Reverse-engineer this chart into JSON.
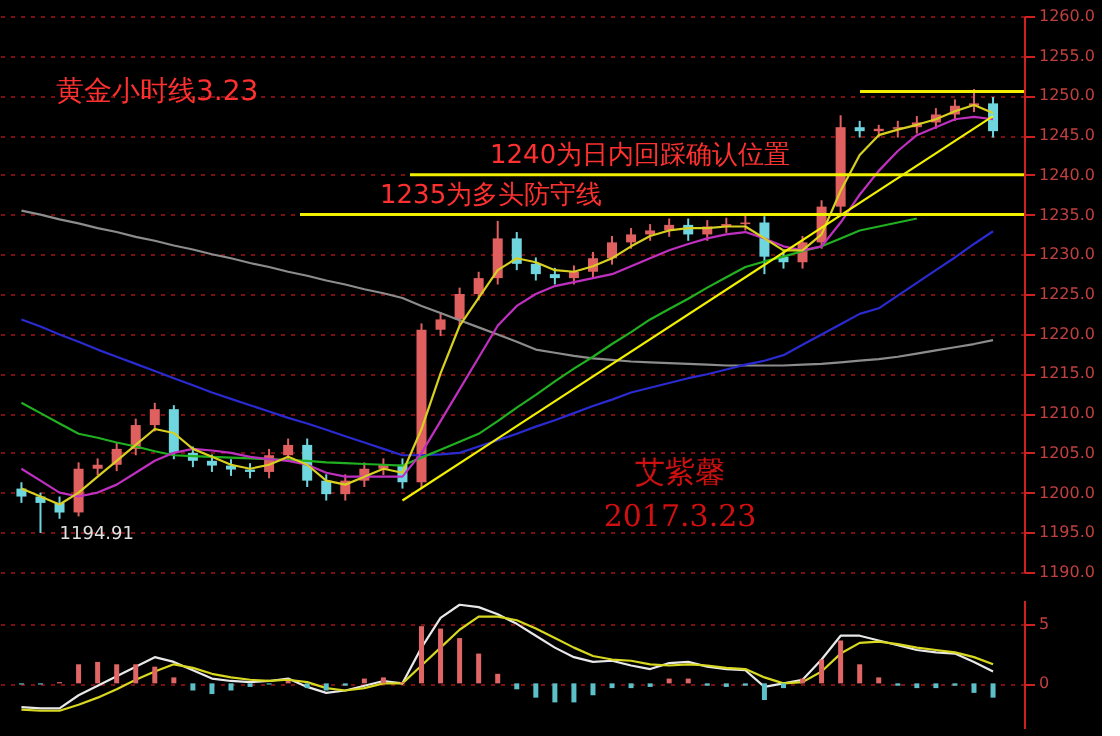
{
  "chart_data": [
    {
      "type": "candlestick",
      "title": "黄金小时线3.23",
      "categories": [
        null,
        null,
        null,
        null,
        null,
        null,
        null,
        null,
        null,
        null,
        null,
        null,
        null,
        null,
        null,
        null,
        null,
        null,
        null,
        null,
        null,
        null,
        null,
        null,
        null,
        null,
        null,
        null,
        null,
        null,
        null,
        null,
        null,
        null,
        null,
        null,
        null,
        null,
        null,
        null,
        null,
        null,
        null,
        null,
        null,
        null,
        null,
        null,
        null,
        null,
        null,
        null
      ],
      "ohlc": [
        [
          1200.5,
          1201.3,
          1198.7,
          1199.5
        ],
        [
          1199.5,
          1200.0,
          1194.91,
          1198.7
        ],
        [
          1198.7,
          1199.5,
          1196.7,
          1197.5
        ],
        [
          1197.5,
          1203.8,
          1197.0,
          1203.0
        ],
        [
          1203.0,
          1204.3,
          1202.2,
          1203.5
        ],
        [
          1203.5,
          1206.3,
          1202.7,
          1205.5
        ],
        [
          1205.5,
          1209.3,
          1204.7,
          1208.5
        ],
        [
          1208.5,
          1211.3,
          1207.7,
          1210.5
        ],
        [
          1210.5,
          1211.0,
          1204.2,
          1205.0
        ],
        [
          1205.0,
          1205.8,
          1203.2,
          1204.0
        ],
        [
          1204.0,
          1204.8,
          1202.6,
          1203.4
        ],
        [
          1203.4,
          1204.2,
          1202.1,
          1202.9
        ],
        [
          1202.9,
          1203.7,
          1201.8,
          1202.6
        ],
        [
          1202.6,
          1205.5,
          1201.8,
          1204.7
        ],
        [
          1204.7,
          1206.8,
          1203.9,
          1206.0
        ],
        [
          1206.0,
          1206.8,
          1200.7,
          1201.5
        ],
        [
          1201.5,
          1202.3,
          1199.0,
          1199.8
        ],
        [
          1199.8,
          1202.3,
          1199.0,
          1201.5
        ],
        [
          1201.5,
          1203.8,
          1200.7,
          1203.0
        ],
        [
          1203.0,
          1204.3,
          1202.2,
          1203.5
        ],
        [
          1203.5,
          1204.3,
          1200.5,
          1201.3
        ],
        [
          1201.3,
          1221.3,
          1200.5,
          1220.5
        ],
        [
          1220.5,
          1222.6,
          1219.7,
          1221.8
        ],
        [
          1221.8,
          1225.8,
          1221.0,
          1225.0
        ],
        [
          1225.0,
          1227.8,
          1224.2,
          1227.0
        ],
        [
          1227.0,
          1234.2,
          1226.2,
          1232.0
        ],
        [
          1232.0,
          1232.8,
          1228.0,
          1228.8
        ],
        [
          1228.8,
          1229.6,
          1226.7,
          1227.5
        ],
        [
          1227.5,
          1228.3,
          1226.2,
          1227.0
        ],
        [
          1227.0,
          1228.6,
          1226.2,
          1227.8
        ],
        [
          1227.8,
          1230.3,
          1227.0,
          1229.5
        ],
        [
          1229.5,
          1232.3,
          1228.7,
          1231.5
        ],
        [
          1231.5,
          1233.3,
          1230.7,
          1232.5
        ],
        [
          1232.5,
          1233.8,
          1231.7,
          1233.0
        ],
        [
          1233.0,
          1234.5,
          1232.2,
          1233.7
        ],
        [
          1233.7,
          1234.5,
          1231.7,
          1232.5
        ],
        [
          1232.5,
          1234.3,
          1231.7,
          1233.5
        ],
        [
          1233.5,
          1234.6,
          1232.7,
          1233.8
        ],
        [
          1233.8,
          1235.0,
          1233.0,
          1234.0
        ],
        [
          1234.0,
          1234.8,
          1227.5,
          1229.7
        ],
        [
          1229.7,
          1230.5,
          1228.2,
          1229.0
        ],
        [
          1229.0,
          1232.3,
          1228.2,
          1231.5
        ],
        [
          1231.5,
          1236.8,
          1230.7,
          1236.0
        ],
        [
          1236.0,
          1247.5,
          1235.2,
          1246.0
        ],
        [
          1246.0,
          1246.8,
          1244.7,
          1245.5
        ],
        [
          1245.5,
          1246.3,
          1244.7,
          1245.8
        ],
        [
          1245.8,
          1246.8,
          1244.7,
          1246.0
        ],
        [
          1246.0,
          1247.4,
          1245.2,
          1246.6
        ],
        [
          1246.6,
          1248.4,
          1245.8,
          1247.6
        ],
        [
          1247.6,
          1249.5,
          1246.8,
          1248.7
        ],
        [
          1248.7,
          1250.8,
          1247.9,
          1249.0
        ],
        [
          1249.0,
          1249.8,
          1244.7,
          1245.5
        ]
      ],
      "colors": [
        "#6fd6e0",
        "#6fd6e0",
        "#6fd6e0",
        "#e06060",
        "#e06060",
        "#e06060",
        "#e06060",
        "#e06060",
        "#6fd6e0",
        "#6fd6e0",
        "#6fd6e0",
        "#6fd6e0",
        "#6fd6e0",
        "#e06060",
        "#e06060",
        "#6fd6e0",
        "#6fd6e0",
        "#e06060",
        "#e06060",
        "#e06060",
        "#6fd6e0",
        "#e06060",
        "#e06060",
        "#e06060",
        "#e06060",
        "#e06060",
        "#6fd6e0",
        "#6fd6e0",
        "#6fd6e0",
        "#e06060",
        "#e06060",
        "#e06060",
        "#e06060",
        "#e06060",
        "#e06060",
        "#6fd6e0",
        "#e06060",
        "#e06060",
        "#e06060",
        "#6fd6e0",
        "#6fd6e0",
        "#e06060",
        "#e06060",
        "#e06060",
        "#6fd6e0",
        "#e06060",
        "#e06060",
        "#e06060",
        "#e06060",
        "#e06060",
        "#e06060",
        "#6fd6e0"
      ],
      "series": [
        {
          "type": "line",
          "color": "#8c8c8c",
          "values": [
            1235.5,
            1235,
            1234.4,
            1233.9,
            1233.3,
            1232.8,
            1232.2,
            1231.7,
            1231.1,
            1230.6,
            1230,
            1229.5,
            1228.9,
            1228.4,
            1227.8,
            1227.3,
            1226.7,
            1226.2,
            1225.6,
            1225.1,
            1224.5,
            1223.5,
            1222.6,
            1221.7,
            1220.8,
            1219.9,
            1219,
            1218,
            1217.6,
            1217.2,
            1216.9,
            1216.7,
            1216.5,
            1216.4,
            1216.3,
            1216.2,
            1216.1,
            1216,
            1216,
            1216,
            1216,
            1216.1,
            1216.2,
            1216.4,
            1216.6,
            1216.8,
            1217.1,
            1217.5,
            1217.9,
            1218.3,
            1218.7,
            1219.2
          ]
        },
        {
          "type": "line",
          "color": "#2a2ad0",
          "values": [
            1221.8,
            1220.9,
            1219.9,
            1219,
            1218,
            1217.1,
            1216.2,
            1215.3,
            1214.4,
            1213.5,
            1212.6,
            1211.8,
            1211,
            1210.2,
            1209.4,
            1208.7,
            1207.9,
            1207.1,
            1206.3,
            1205.5,
            1204.7,
            1204.7,
            1204.8,
            1205,
            1205.8,
            1206.6,
            1207.4,
            1208.3,
            1209.1,
            1210,
            1210.9,
            1211.7,
            1212.6,
            1213.2,
            1213.8,
            1214.4,
            1214.9,
            1215.5,
            1216.1,
            1216.6,
            1217.3,
            1218.6,
            1219.9,
            1221.2,
            1222.5,
            1223.2,
            1224.8,
            1226.4,
            1228,
            1229.6,
            1231.3,
            1232.9
          ]
        },
        {
          "type": "line",
          "color": "#20b020",
          "values": [
            1211.3,
            1210,
            1208.7,
            1207.4,
            1206.9,
            1206.3,
            1205.8,
            1205.2,
            1204.7,
            1204.6,
            1204.5,
            1204.4,
            1204.3,
            1204.2,
            1204.1,
            1204,
            1203.8,
            1203.7,
            1203.6,
            1203.5,
            1203.4,
            1204.4,
            1205.4,
            1206.4,
            1207.4,
            1209,
            1210.7,
            1212.3,
            1214,
            1215.6,
            1217.1,
            1218.7,
            1220.2,
            1221.8,
            1223.1,
            1224.4,
            1225.8,
            1227.1,
            1228.4,
            1229.1,
            1229.7,
            1230.4,
            1231,
            1232,
            1233,
            1233.5,
            1234,
            1234.5,
            null,
            null,
            null,
            null
          ]
        },
        {
          "type": "line",
          "color": "#c030c0",
          "values": [
            1203,
            1201.5,
            1200,
            1199.5,
            1200,
            1201,
            1202.5,
            1204,
            1205,
            1205.5,
            1205.3,
            1205,
            1204.5,
            1204.2,
            1204,
            1203.5,
            1202.5,
            1202,
            1202,
            1202,
            1202,
            1205,
            1209,
            1213,
            1217,
            1221,
            1223.5,
            1225,
            1226,
            1226.5,
            1227,
            1227.5,
            1228.5,
            1229.5,
            1230.5,
            1231.3,
            1232,
            1232.5,
            1232.8,
            1232,
            1231,
            1230.5,
            1231,
            1234,
            1237.5,
            1240.5,
            1243,
            1245,
            1246,
            1247,
            1247.3,
            1247
          ]
        },
        {
          "type": "line",
          "color": "#d8d020",
          "values": [
            1200.5,
            1199.5,
            1198.5,
            1200,
            1202,
            1204,
            1206,
            1208,
            1207.5,
            1205.5,
            1204.5,
            1203.5,
            1203,
            1203.5,
            1204.5,
            1203.5,
            1201.5,
            1201,
            1202,
            1203,
            1202.5,
            1208,
            1215,
            1221,
            1224.5,
            1228,
            1229.5,
            1229,
            1228,
            1227.8,
            1228.5,
            1229.5,
            1231,
            1232.3,
            1233,
            1233.3,
            1233.3,
            1233.5,
            1233.5,
            1232,
            1230.5,
            1230.5,
            1232.5,
            1238,
            1242.5,
            1245,
            1245.7,
            1246.3,
            1247,
            1248,
            1248.8,
            1247.8
          ]
        },
        {
          "type": "line",
          "color": "#f0f000",
          "values": [
            null,
            null,
            null,
            null,
            null,
            null,
            null,
            null,
            null,
            null,
            null,
            null,
            null,
            null,
            null,
            null,
            null,
            null,
            null,
            null,
            1199.0,
            null,
            null,
            null,
            null,
            null,
            null,
            null,
            null,
            null,
            null,
            null,
            null,
            null,
            null,
            null,
            null,
            null,
            null,
            null,
            null,
            null,
            null,
            null,
            null,
            null,
            null,
            null,
            null,
            null,
            null,
            1247.4
          ]
        }
      ],
      "ref_lines": [
        {
          "axis": "y",
          "value": 1235,
          "label": "1235为多头防守线",
          "color": "#f0f000"
        },
        {
          "axis": "y",
          "value": 1240,
          "label": "1240为日内回踩确认位置",
          "color": "#f0f000"
        },
        {
          "axis": "y",
          "value": 1250.5,
          "label": null,
          "color": "#f0f000"
        }
      ],
      "annotations": [
        "1194.91",
        "艾紫馨",
        "2017.3.23"
      ],
      "ylim": [
        1190,
        1260
      ],
      "yticks": [
        {
          "value": 1190,
          "label": "1190.0"
        },
        {
          "value": 1195,
          "label": "1195.0"
        },
        {
          "value": 1200,
          "label": "1200.0"
        },
        {
          "value": 1205,
          "label": "1205.0"
        },
        {
          "value": 1210,
          "label": "1210.0"
        },
        {
          "value": 1215,
          "label": "1215.0"
        },
        {
          "value": 1220,
          "label": "1220.0"
        },
        {
          "value": 1225,
          "label": "1225.0"
        },
        {
          "value": 1230,
          "label": "1230.0"
        },
        {
          "value": 1235,
          "label": "1235.0"
        },
        {
          "value": 1240,
          "label": "1240.0"
        },
        {
          "value": 1245,
          "label": "1245.0"
        },
        {
          "value": 1250,
          "label": "1250.0"
        },
        {
          "value": 1255,
          "label": "1255.0"
        },
        {
          "value": 1260,
          "label": "1260.0"
        }
      ],
      "grid": "y",
      "tick_labels": "y"
    },
    {
      "type": "bar",
      "categories": [
        null,
        null,
        null,
        null,
        null,
        null,
        null,
        null,
        null,
        null,
        null,
        null,
        null,
        null,
        null,
        null,
        null,
        null,
        null,
        null,
        null,
        null,
        null,
        null,
        null,
        null,
        null,
        null,
        null,
        null,
        null,
        null,
        null,
        null,
        null,
        null,
        null,
        null,
        null,
        null,
        null,
        null,
        null,
        null,
        null,
        null,
        null,
        null,
        null,
        null,
        null,
        null
      ],
      "series": [
        {
          "values": [
            -0.1,
            -0.1,
            0.1,
            1.6,
            1.8,
            1.6,
            1.6,
            1.4,
            0.5,
            -0.6,
            -0.9,
            -0.6,
            -0.3,
            -0.1,
            0.2,
            -0.4,
            -0.6,
            -0.2,
            0.4,
            0.5,
            0.1,
            4.8,
            4.6,
            3.8,
            2.5,
            0.8,
            -0.5,
            -1.2,
            -1.6,
            -1.6,
            -1.0,
            -0.4,
            -0.4,
            -0.3,
            0.4,
            0.4,
            -0.2,
            -0.3,
            -0.2,
            -1.4,
            -0.4,
            0.4,
            2.0,
            3.6,
            1.6,
            0.5,
            -0.2,
            -0.4,
            -0.4,
            -0.2,
            -0.8,
            -1.2
          ],
          "colors": [
            "#5bc0c8",
            "#5bc0c8",
            "#e06666",
            "#e06666",
            "#e06666",
            "#e06666",
            "#e06666",
            "#e06666",
            "#e06666",
            "#5bc0c8",
            "#5bc0c8",
            "#5bc0c8",
            "#5bc0c8",
            "#5bc0c8",
            "#e06666",
            "#5bc0c8",
            "#5bc0c8",
            "#5bc0c8",
            "#e06666",
            "#e06666",
            "#e06666",
            "#e06666",
            "#e06666",
            "#e06666",
            "#e06666",
            "#e06666",
            "#5bc0c8",
            "#5bc0c8",
            "#5bc0c8",
            "#5bc0c8",
            "#5bc0c8",
            "#5bc0c8",
            "#5bc0c8",
            "#5bc0c8",
            "#e06666",
            "#e06666",
            "#5bc0c8",
            "#5bc0c8",
            "#5bc0c8",
            "#5bc0c8",
            "#5bc0c8",
            "#e06666",
            "#e06666",
            "#e06666",
            "#e06666",
            "#e06666",
            "#5bc0c8",
            "#5bc0c8",
            "#5bc0c8",
            "#5bc0c8",
            "#5bc0c8",
            "#5bc0c8"
          ]
        },
        {
          "type": "line",
          "color": "#e8e8e8",
          "values": [
            -2.0,
            -2.1,
            -2.1,
            -1.0,
            -0.2,
            0.6,
            1.4,
            2.2,
            1.8,
            1.1,
            0.4,
            0.2,
            0.1,
            0.2,
            0.4,
            -0.3,
            -0.8,
            -0.6,
            -0.2,
            0.2,
            0,
            3.0,
            5.5,
            6.6,
            6.4,
            5.8,
            5.0,
            4.0,
            3.0,
            2.2,
            1.8,
            1.9,
            1.5,
            1.2,
            1.7,
            1.8,
            1.4,
            1.2,
            1.1,
            -0.3,
            0,
            0.3,
            2.0,
            4.0,
            4.0,
            3.6,
            3.2,
            2.8,
            2.6,
            2.5,
            1.8,
            1.0
          ]
        },
        {
          "type": "line",
          "color": "#d8d820",
          "values": [
            -2.2,
            -2.3,
            -2.3,
            -1.8,
            -1.2,
            -0.5,
            0.3,
            1.0,
            1.6,
            1.3,
            0.8,
            0.5,
            0.3,
            0.2,
            0.3,
            0.1,
            -0.4,
            -0.6,
            -0.4,
            0,
            0,
            1.5,
            3.0,
            4.5,
            5.6,
            5.6,
            5.3,
            4.6,
            3.8,
            3.0,
            2.3,
            2.0,
            1.9,
            1.6,
            1.5,
            1.6,
            1.5,
            1.3,
            1.2,
            0.5,
            0,
            0.1,
            1.0,
            2.5,
            3.4,
            3.5,
            3.3,
            3.0,
            2.8,
            2.6,
            2.2,
            1.6
          ]
        }
      ],
      "ylim": [
        -3.75,
        7
      ],
      "yticks": [
        0,
        5
      ],
      "grid": "y",
      "tick_labels": "y"
    }
  ]
}
